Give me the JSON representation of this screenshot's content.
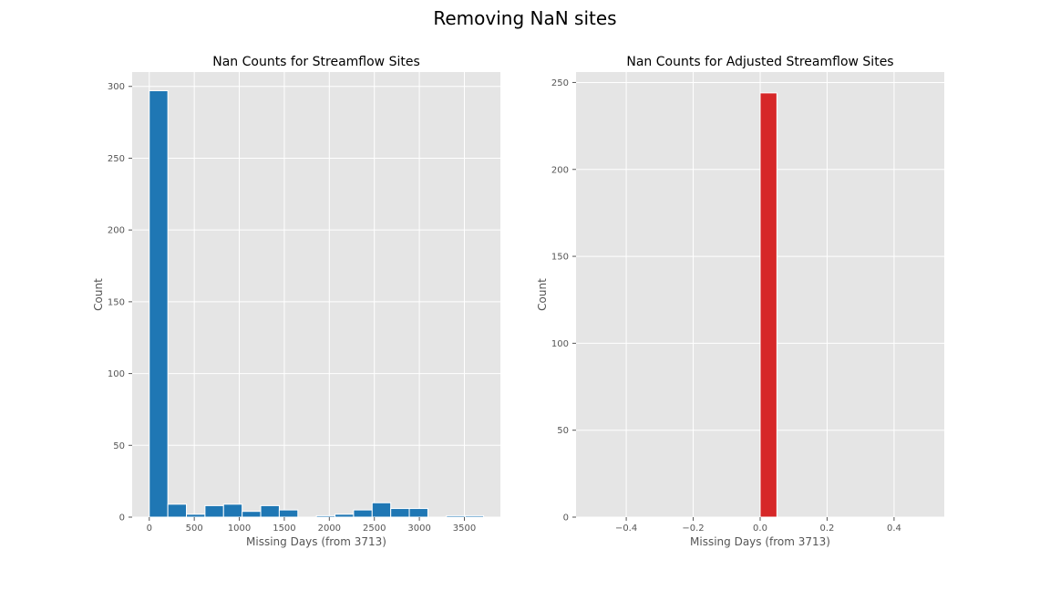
{
  "figure_title": "Removing NaN sites",
  "chart_data": [
    {
      "type": "bar",
      "title": "Nan Counts for Streamflow Sites",
      "xlabel": "Missing Days (from 3713)",
      "ylabel": "Count",
      "bar_color": "#1f77b4",
      "xlim": [
        -190,
        3900
      ],
      "ylim": [
        0,
        310
      ],
      "xticks": [
        0,
        500,
        1000,
        1500,
        2000,
        2500,
        3000,
        3500
      ],
      "xtick_labels": [
        "0",
        "500",
        "1000",
        "1500",
        "2000",
        "2500",
        "3000",
        "3500"
      ],
      "yticks": [
        0,
        50,
        100,
        150,
        200,
        250,
        300
      ],
      "ytick_labels": [
        "0",
        "50",
        "100",
        "150",
        "200",
        "250",
        "300"
      ],
      "bin_edges": [
        0,
        206.3,
        412.6,
        618.9,
        825.2,
        1031.5,
        1237.8,
        1444.1,
        1650.4,
        1856.7,
        2063,
        2269.3,
        2475.6,
        2681.9,
        2888.2,
        3094.5,
        3300.8,
        3507.1,
        3713.4
      ],
      "values": [
        297,
        9,
        2,
        8,
        9,
        4,
        8,
        5,
        0,
        1,
        2,
        5,
        10,
        6,
        6,
        0,
        1,
        1
      ],
      "grid": true
    },
    {
      "type": "bar",
      "title": "Nan Counts for Adjusted Streamflow Sites",
      "xlabel": "Missing Days (from 3713)",
      "ylabel": "Count",
      "bar_color": "#d62728",
      "xlim": [
        -0.55,
        0.55
      ],
      "ylim": [
        0,
        256
      ],
      "xticks": [
        -0.4,
        -0.2,
        0.0,
        0.2,
        0.4
      ],
      "xtick_labels": [
        "−0.4",
        "−0.2",
        "0.0",
        "0.2",
        "0.4"
      ],
      "yticks": [
        0,
        50,
        100,
        150,
        200,
        250
      ],
      "ytick_labels": [
        "0",
        "50",
        "100",
        "150",
        "200",
        "250"
      ],
      "bin_edges": [
        0.0,
        0.05
      ],
      "values": [
        244
      ],
      "grid": true
    }
  ]
}
